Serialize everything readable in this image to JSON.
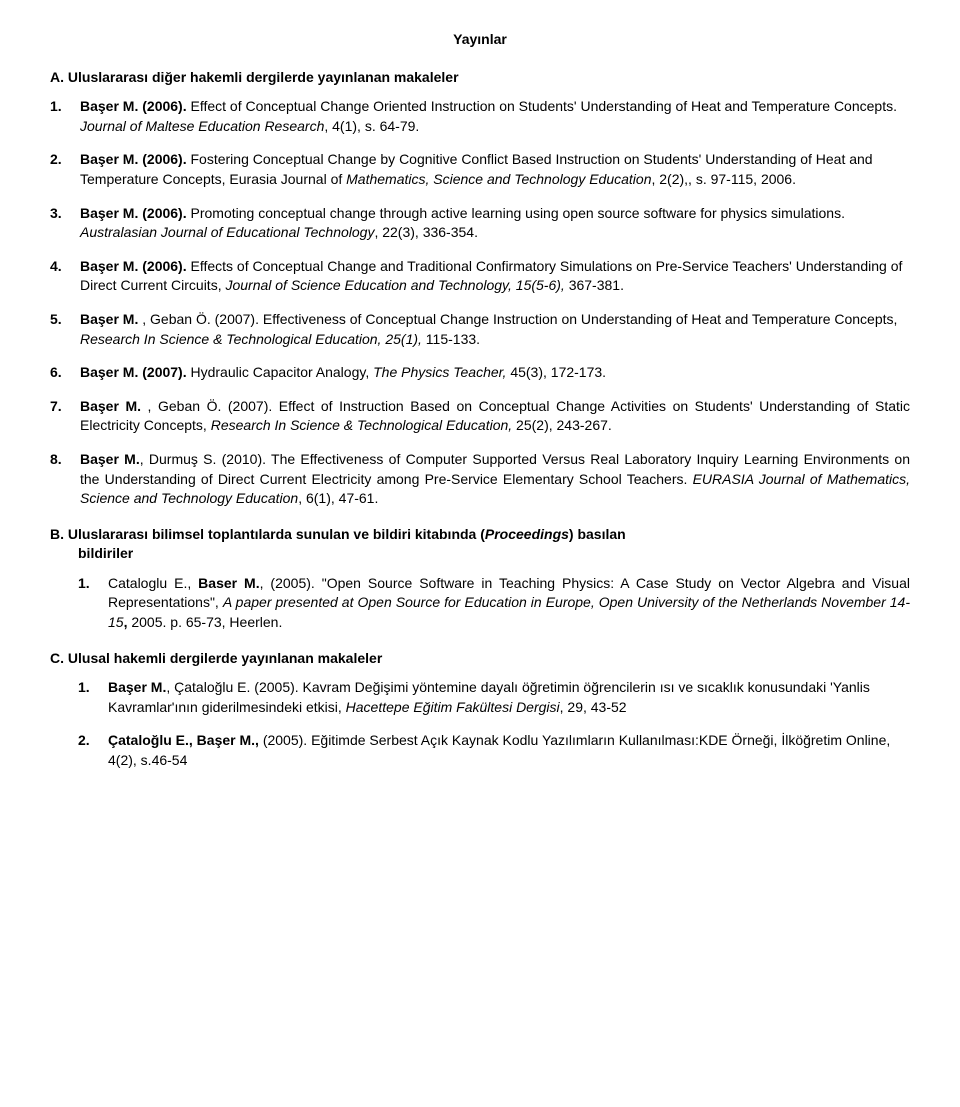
{
  "title": "Yayınlar",
  "sectionA": {
    "heading": "A. Uluslararası diğer hakemli dergilerde yayınlanan makaleler",
    "items": [
      {
        "num": "1.",
        "html": "<b>Başer M. (2006).</b> Effect of Conceptual Change Oriented Instruction on Students' Understanding of Heat and Temperature Concepts. <i>Journal of Maltese Education Research</i>, 4(1), s. 64-79."
      },
      {
        "num": "2.",
        "html": "<b>Başer M. (2006).</b> Fostering Conceptual Change by Cognitive Conflict Based Instruction on Students' Understanding of Heat and Temperature Concepts, Eurasia Journal of <i>Mathematics, Science and Technology Education</i>, 2(2),, s. 97-115, 2006."
      },
      {
        "num": "3.",
        "html": "<b>Başer M. (2006).</b> Promoting conceptual change through active learning using open source software for physics simulations. <i>Australasian Journal of Educational Technology</i>, 22(3), 336-354."
      },
      {
        "num": "4.",
        "html": "<b>Başer M. (2006).</b> Effects of Conceptual Change and Traditional Confirmatory Simulations on Pre-Service Teachers' Understanding of Direct Current Circuits, <i>Journal of Science Education and Technology, 15(5-6),</i> 367-381."
      },
      {
        "num": "5.",
        "html": "<b>Başer M.</b> , Geban Ö. (2007). Effectiveness of Conceptual Change Instruction on Understanding of Heat and Temperature Concepts, <i>Research In Science & Technological Education, 25(1),</i> 115-133."
      },
      {
        "num": "6.",
        "html": "<b>Başer M. (2007).</b> Hydraulic Capacitor Analogy, <i>The Physics Teacher,</i> 45(3), 172-173."
      },
      {
        "num": "7.",
        "html": "<b>Başer M.</b> , Geban Ö. (2007). Effect of Instruction Based on Conceptual Change Activities on Students' Understanding of Static Electricity Concepts, <i>Research In Science & Technological Education,</i> 25(2), 243-267.",
        "justify": true
      },
      {
        "num": "8.",
        "html": "<b>Başer M.</b>, Durmuş S. (2010). The Effectiveness of  Computer Supported Versus Real Laboratory Inquiry Learning Environments on the Understanding of Direct Current Electricity among Pre-Service Elementary School Teachers. <i>EURASIA Journal of Mathematics, Science and Technology Education</i>, 6(1), 47-61.",
        "justify": true
      }
    ]
  },
  "sectionB": {
    "heading": "B. Uluslararası bilimsel toplantılarda sunulan ve bildiri kitabında (<i>Proceedings</i>) basılan",
    "subheading": "bildiriler",
    "items": [
      {
        "num": "1.",
        "html": "Cataloglu E., <b>Baser M.</b>, (2005). \"Open Source Software in Teaching Physics: A Case Study on Vector Algebra and Visual Representations\", <i>A paper presented at Open Source for Education in Europe, Open University of the Netherlands November 14-15</i><b>,</b> 2005. p. 65-73, Heerlen.",
        "justify": true
      }
    ]
  },
  "sectionC": {
    "heading": "C. Ulusal hakemli dergilerde yayınlanan makaleler",
    "items": [
      {
        "num": "1.",
        "html": "<b>Başer M.</b>, Çataloğlu E. (2005). Kavram Değişimi yöntemine dayalı öğretimin öğrencilerin ısı ve sıcaklık konusundaki 'Yanlis Kavramlar'ının giderilmesindeki etkisi,  <i>Hacettepe Eğitim Fakültesi Dergisi</i>, 29, 43-52"
      },
      {
        "num": "2.",
        "html": "<b>Çataloğlu E., Başer M.,</b> (2005). Eğitimde Serbest Açık Kaynak Kodlu Yazılımların Kullanılması:KDE Örneği, İlköğretim Online, 4(2), s.46-54"
      }
    ]
  }
}
